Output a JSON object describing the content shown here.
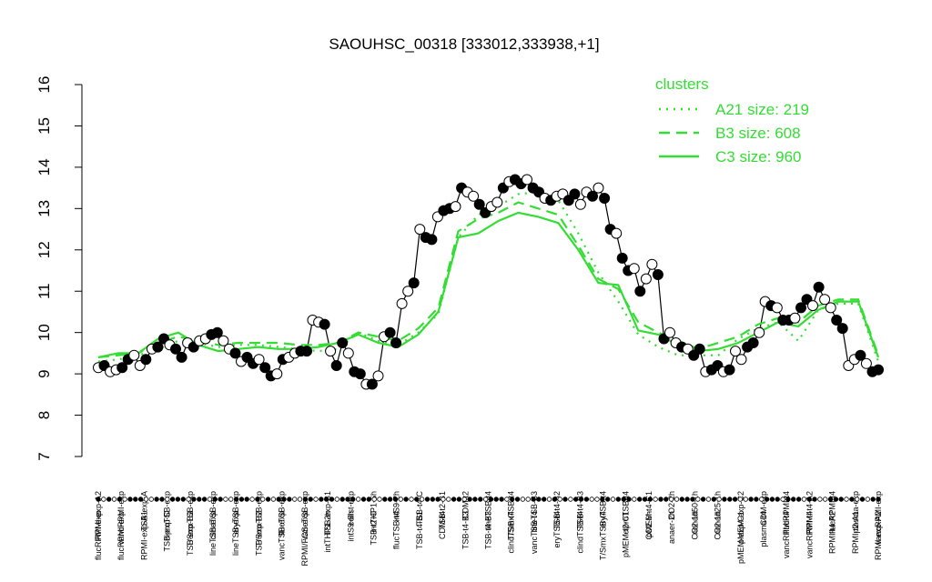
{
  "chart_data": {
    "type": "line",
    "title": "SAOUHSC_00318 [333012,333938,+1]",
    "ylim": [
      7,
      16
    ],
    "yticks": [
      7,
      8,
      9,
      10,
      11,
      12,
      13,
      14,
      15,
      16
    ],
    "legend": {
      "title": "clusters",
      "placement": "top-right",
      "color": "#33dd33",
      "entries": [
        {
          "label": "A21 size: 219",
          "style": "dotted"
        },
        {
          "label": "B3 size: 608",
          "style": "dashed"
        },
        {
          "label": "C3 size: 960",
          "style": "solid"
        }
      ]
    },
    "top_labels": [
      "RPMI-exp-A2",
      "vancRPMI-exp",
      "TSB-exp-A",
      "ciproTSB-exp",
      "T/SmxTSB-exp",
      "clindTSB-exp",
      "eryTSB-exp",
      "T/SmxTSB-exp",
      "flucTSB-exp",
      "vancTSB-exp",
      "TSB-exp-B1",
      "colist-exp",
      "intTHP1-6h",
      "intS9-2h",
      "TSB-t4-C",
      "TSB-t2-B1",
      "CDM-t2",
      "lineTSB-t4",
      "T/SmxTSB-t4",
      "lineTSB-B3",
      "TSB-t4-B2",
      "TSB-t4-B3",
      "eryTSB-t4",
      "ciproTSB-t4",
      "pMEM-t4-C1",
      "CO2-2h",
      "nonad50-1h",
      "nonad25-1h",
      "pMEM-exp-C2",
      "CDM-exp",
      "flucRPMI-t4",
      "RPMI-t4-A2",
      "flucRPMI-t4",
      "plasma-exp",
      "vancRPMI-exp"
    ],
    "bottom_labels": [
      "flucRPMI-exp",
      "flucRPMI-exp",
      "RPMI-exp-A1",
      "TSB-exp-C",
      "TSB-exp-B3",
      "lineTSB-exp",
      "lineTSB-exp",
      "TSB-exp-B2",
      "vancTSB-exp",
      "RPMI/FCS-exp",
      "intTHP1-2h",
      "intS9-6h",
      "TSB-t2-C",
      "flucTSB-t4",
      "TSB-t4-B1",
      "CDM-t4",
      "TSB-t4-B3",
      "TSB-t4-B3",
      "clindTSB-t4",
      "vancTSB-t4",
      "eryTSB-t4",
      "clindTSB-t4",
      "T/SmxTSB-t4",
      "pMEM-t2-C1",
      "CO2-6h",
      "anaer-2h",
      "CO2-1h",
      "CO2-1h",
      "pMEM-exp-C1",
      "plasma-t4",
      "vancRPMI-t4",
      "vancRPMI-t4",
      "RPMI-t4-A2",
      "RPMI-t2-A1",
      "RPMI-exp-A2"
    ],
    "series": [
      {
        "style": "points-line",
        "y": [
          9.15,
          9.2,
          9.05,
          9.1,
          9.15,
          9.35,
          9.45,
          9.2,
          9.35,
          9.6,
          9.65,
          9.85,
          9.7,
          9.6,
          9.4,
          9.75,
          9.65,
          9.8,
          9.85,
          9.95,
          10.0,
          9.8,
          9.6,
          9.5,
          9.3,
          9.4,
          9.25,
          9.35,
          9.15,
          8.95,
          9.0,
          9.35,
          9.4,
          9.5,
          9.55,
          9.55,
          10.3,
          10.25,
          10.2,
          9.55,
          9.2,
          9.75,
          9.5,
          9.05,
          9.0,
          8.75,
          8.75,
          8.95,
          9.9,
          10.0,
          9.75,
          10.7,
          11.0,
          11.2,
          12.5,
          12.3,
          12.25,
          12.8,
          12.95,
          13.0,
          13.05,
          13.5,
          13.4,
          13.3,
          13.1,
          12.9,
          13.05,
          13.15,
          13.5,
          13.65,
          13.7,
          13.6,
          13.7,
          13.5,
          13.4,
          13.25,
          13.2,
          13.3,
          13.35,
          13.2,
          13.35,
          13.1,
          13.4,
          13.3,
          13.5,
          13.25,
          12.5,
          12.4,
          11.8,
          11.5,
          11.55,
          11.0,
          11.3,
          11.65,
          11.4,
          9.85,
          10.0,
          9.75,
          9.65,
          9.6,
          9.45,
          9.6,
          9.05,
          9.1,
          9.2,
          9.05,
          9.1,
          9.55,
          9.35,
          9.65,
          9.75,
          10.0,
          10.75,
          10.65,
          10.6,
          10.3,
          10.3,
          10.35,
          10.6,
          10.8,
          10.65,
          11.1,
          10.8,
          10.6,
          10.3,
          10.1,
          9.2,
          9.35,
          9.45,
          9.25,
          9.05,
          9.1
        ]
      },
      {
        "style": "dotted",
        "y": [
          9.3,
          9.35,
          9.45,
          9.6,
          9.8,
          9.75,
          9.65,
          9.7,
          9.7,
          9.65,
          9.6,
          9.55,
          9.6,
          10.0,
          9.8,
          9.7,
          10.0,
          10.45,
          12.3,
          12.85,
          13.05,
          13.35,
          13.4,
          13.2,
          12.4,
          11.45,
          10.75,
          9.95,
          9.65,
          9.45,
          9.45,
          9.45,
          9.85,
          10.1,
          10.25,
          9.8,
          10.55,
          10.7,
          10.7,
          9.3
        ]
      },
      {
        "style": "dashed",
        "y": [
          9.4,
          9.45,
          9.5,
          9.75,
          9.9,
          9.8,
          9.7,
          9.75,
          9.75,
          9.75,
          9.7,
          9.7,
          9.75,
          10.0,
          9.9,
          9.8,
          10.1,
          10.6,
          12.45,
          12.75,
          12.9,
          13.15,
          13.0,
          12.85,
          12.1,
          11.3,
          11.05,
          10.25,
          10.0,
          9.8,
          9.6,
          9.75,
          9.9,
          10.2,
          10.35,
          10.25,
          10.65,
          10.8,
          10.8,
          9.45
        ]
      },
      {
        "style": "solid",
        "y": [
          9.4,
          9.5,
          9.5,
          9.85,
          10.0,
          9.7,
          9.55,
          9.6,
          9.65,
          9.6,
          9.6,
          9.65,
          9.75,
          9.95,
          9.75,
          9.65,
          9.95,
          10.5,
          12.3,
          12.4,
          12.7,
          12.9,
          12.8,
          12.65,
          12.0,
          11.2,
          11.15,
          10.05,
          9.95,
          9.7,
          9.55,
          9.6,
          9.75,
          10.0,
          10.25,
          10.15,
          10.55,
          10.75,
          10.75,
          9.4
        ]
      }
    ]
  }
}
